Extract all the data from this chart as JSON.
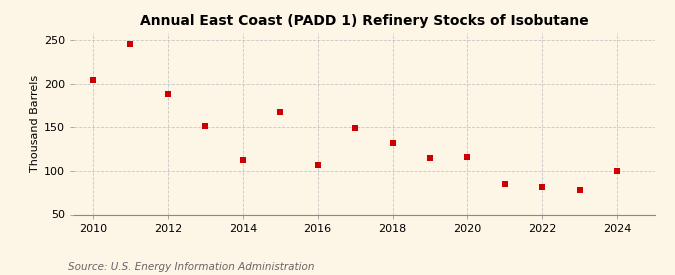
{
  "title": "Annual East Coast (PADD 1) Refinery Stocks of Isobutane",
  "ylabel": "Thousand Barrels",
  "source": "Source: U.S. Energy Information Administration",
  "years": [
    2010,
    2011,
    2012,
    2013,
    2014,
    2015,
    2016,
    2017,
    2018,
    2019,
    2020,
    2021,
    2022,
    2023,
    2024
  ],
  "values": [
    204,
    245,
    188,
    151,
    113,
    167,
    107,
    149,
    132,
    115,
    116,
    85,
    82,
    78,
    100
  ],
  "marker_color": "#CC0000",
  "marker": "s",
  "marker_size": 4,
  "xlim": [
    2009.5,
    2025.0
  ],
  "ylim": [
    50,
    258
  ],
  "yticks": [
    50,
    100,
    150,
    200,
    250
  ],
  "xticks": [
    2010,
    2012,
    2014,
    2016,
    2018,
    2020,
    2022,
    2024
  ],
  "background_color": "#FDF5E6",
  "grid_color": "#BBBBBB",
  "title_fontsize": 10,
  "label_fontsize": 8,
  "tick_fontsize": 8,
  "source_fontsize": 7.5
}
